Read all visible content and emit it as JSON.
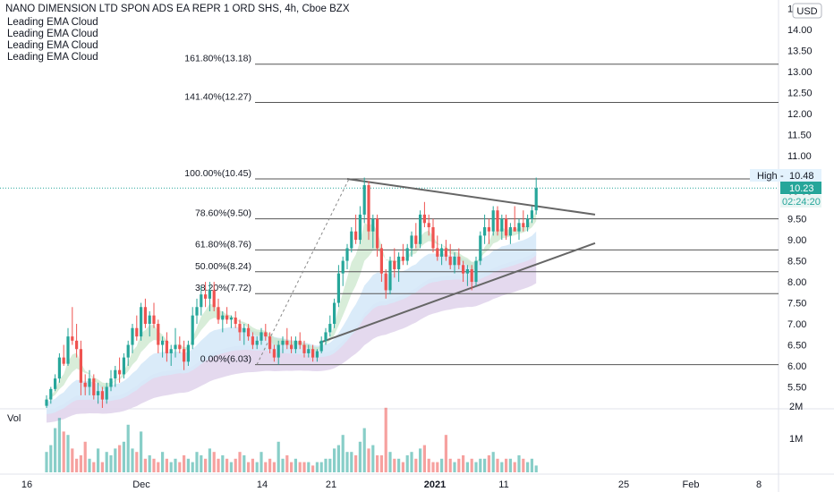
{
  "header": {
    "title": "NANO DIMENSION LTD SPON ADS EA REPR 1 ORD SHS, 4h, Cboe BZX",
    "indicators": [
      "Leading EMA Cloud",
      "Leading EMA Cloud",
      "Leading EMA Cloud",
      "Leading EMA Cloud"
    ],
    "currency": "USD"
  },
  "volume_label": "Vol",
  "countdown": "02:24:20",
  "colors": {
    "up": "#26a69a",
    "down": "#ef5350",
    "fib_line": "#555555",
    "trend_line": "#666666",
    "price_line": "#26a69a",
    "cloud_green": "#c8e6c9",
    "cloud_red": "#ffcdd2",
    "cloud_blue": "#d6e9f8",
    "cloud_purple": "#e1d5ec"
  },
  "chart_data": {
    "type": "candlestick",
    "y_ticks": [
      "5.50",
      "6.00",
      "6.50",
      "7.00",
      "7.50",
      "8.00",
      "8.50",
      "9.00",
      "9.50",
      "10.00",
      "10.50",
      "11.00",
      "11.50",
      "12.00",
      "12.50",
      "13.00",
      "13.50",
      "14.00",
      "14.50"
    ],
    "ylim": [
      5.0,
      14.6
    ],
    "volume_ticks": [
      "2M",
      "1M"
    ],
    "volume_max": 2000000,
    "x_ticks": [
      "16",
      "Dec",
      "14",
      "21",
      "2021",
      "11",
      "25",
      "Feb",
      "8"
    ],
    "fib_levels": [
      {
        "label": "161.80%(13.18)",
        "value": 13.18
      },
      {
        "label": "141.40%(12.27)",
        "value": 12.27
      },
      {
        "label": "100.00%(10.45)",
        "value": 10.45
      },
      {
        "label": "78.60%(9.50)",
        "value": 9.5
      },
      {
        "label": "61.80%(8.76)",
        "value": 8.76
      },
      {
        "label": "50.00%(8.24)",
        "value": 8.24
      },
      {
        "label": "38.20%(7.72)",
        "value": 7.72
      },
      {
        "label": "0.00%(6.03)",
        "value": 6.03
      }
    ],
    "last_price": {
      "label": "10.23",
      "value": 10.23
    },
    "high_marker": {
      "label": "High",
      "value_label": "10.48",
      "value": 10.48
    },
    "candles": [
      {
        "o": 5.05,
        "h": 5.3,
        "l": 5.0,
        "c": 5.2
      },
      {
        "o": 5.2,
        "h": 5.5,
        "l": 5.1,
        "c": 5.45
      },
      {
        "o": 5.45,
        "h": 5.8,
        "l": 5.4,
        "c": 5.7
      },
      {
        "o": 5.7,
        "h": 6.3,
        "l": 5.6,
        "c": 6.2
      },
      {
        "o": 6.2,
        "h": 6.5,
        "l": 6.0,
        "c": 6.05
      },
      {
        "o": 6.05,
        "h": 6.9,
        "l": 6.0,
        "c": 6.7
      },
      {
        "o": 6.7,
        "h": 7.4,
        "l": 6.5,
        "c": 6.6
      },
      {
        "o": 6.6,
        "h": 7.0,
        "l": 6.2,
        "c": 6.4
      },
      {
        "o": 6.4,
        "h": 6.6,
        "l": 5.3,
        "c": 5.6
      },
      {
        "o": 5.6,
        "h": 5.8,
        "l": 5.3,
        "c": 5.5
      },
      {
        "o": 5.5,
        "h": 5.9,
        "l": 5.3,
        "c": 5.7
      },
      {
        "o": 5.7,
        "h": 5.8,
        "l": 5.2,
        "c": 5.3
      },
      {
        "o": 5.3,
        "h": 5.6,
        "l": 5.1,
        "c": 5.4
      },
      {
        "o": 5.4,
        "h": 5.5,
        "l": 5.0,
        "c": 5.2
      },
      {
        "o": 5.2,
        "h": 5.6,
        "l": 5.1,
        "c": 5.5
      },
      {
        "o": 5.5,
        "h": 5.9,
        "l": 5.4,
        "c": 5.7
      },
      {
        "o": 5.7,
        "h": 6.0,
        "l": 5.5,
        "c": 5.9
      },
      {
        "o": 5.9,
        "h": 6.2,
        "l": 5.6,
        "c": 5.8
      },
      {
        "o": 5.8,
        "h": 6.3,
        "l": 5.7,
        "c": 6.2
      },
      {
        "o": 6.2,
        "h": 6.6,
        "l": 6.0,
        "c": 6.5
      },
      {
        "o": 6.5,
        "h": 7.0,
        "l": 6.3,
        "c": 6.9
      },
      {
        "o": 6.9,
        "h": 7.2,
        "l": 6.6,
        "c": 6.7
      },
      {
        "o": 6.7,
        "h": 7.5,
        "l": 6.6,
        "c": 7.4
      },
      {
        "o": 7.4,
        "h": 7.6,
        "l": 6.9,
        "c": 7.0
      },
      {
        "o": 7.0,
        "h": 7.3,
        "l": 6.7,
        "c": 7.2
      },
      {
        "o": 7.2,
        "h": 7.5,
        "l": 6.9,
        "c": 7.0
      },
      {
        "o": 7.0,
        "h": 7.1,
        "l": 6.3,
        "c": 6.5
      },
      {
        "o": 6.5,
        "h": 6.7,
        "l": 6.2,
        "c": 6.6
      },
      {
        "o": 6.6,
        "h": 6.8,
        "l": 6.1,
        "c": 6.3
      },
      {
        "o": 6.3,
        "h": 6.5,
        "l": 6.0,
        "c": 6.4
      },
      {
        "o": 6.4,
        "h": 6.9,
        "l": 6.2,
        "c": 6.5
      },
      {
        "o": 6.5,
        "h": 6.7,
        "l": 6.3,
        "c": 6.4
      },
      {
        "o": 6.4,
        "h": 6.6,
        "l": 5.9,
        "c": 6.1
      },
      {
        "o": 6.1,
        "h": 6.6,
        "l": 6.0,
        "c": 6.5
      },
      {
        "o": 6.5,
        "h": 7.4,
        "l": 6.4,
        "c": 7.2
      },
      {
        "o": 7.2,
        "h": 7.6,
        "l": 7.0,
        "c": 7.4
      },
      {
        "o": 7.4,
        "h": 7.9,
        "l": 7.2,
        "c": 7.7
      },
      {
        "o": 7.7,
        "h": 8.0,
        "l": 7.4,
        "c": 7.6
      },
      {
        "o": 7.6,
        "h": 8.0,
        "l": 7.3,
        "c": 7.8
      },
      {
        "o": 7.8,
        "h": 8.0,
        "l": 7.3,
        "c": 7.4
      },
      {
        "o": 7.4,
        "h": 7.6,
        "l": 7.0,
        "c": 7.1
      },
      {
        "o": 7.1,
        "h": 7.3,
        "l": 6.8,
        "c": 7.2
      },
      {
        "o": 7.2,
        "h": 7.4,
        "l": 7.0,
        "c": 7.1
      },
      {
        "o": 7.1,
        "h": 7.2,
        "l": 6.9,
        "c": 7.15
      },
      {
        "o": 7.15,
        "h": 7.3,
        "l": 6.9,
        "c": 7.0
      },
      {
        "o": 7.0,
        "h": 7.1,
        "l": 6.6,
        "c": 6.8
      },
      {
        "o": 6.8,
        "h": 7.0,
        "l": 6.5,
        "c": 6.9
      },
      {
        "o": 6.9,
        "h": 7.0,
        "l": 6.6,
        "c": 6.7
      },
      {
        "o": 6.7,
        "h": 6.8,
        "l": 6.4,
        "c": 6.5
      },
      {
        "o": 6.5,
        "h": 6.7,
        "l": 6.4,
        "c": 6.6
      },
      {
        "o": 6.6,
        "h": 6.9,
        "l": 6.5,
        "c": 6.8
      },
      {
        "o": 6.8,
        "h": 7.0,
        "l": 6.6,
        "c": 6.7
      },
      {
        "o": 6.7,
        "h": 6.8,
        "l": 6.3,
        "c": 6.4
      },
      {
        "o": 6.4,
        "h": 6.5,
        "l": 6.1,
        "c": 6.2
      },
      {
        "o": 6.2,
        "h": 6.6,
        "l": 6.03,
        "c": 6.5
      },
      {
        "o": 6.5,
        "h": 6.7,
        "l": 6.3,
        "c": 6.6
      },
      {
        "o": 6.6,
        "h": 6.9,
        "l": 6.4,
        "c": 6.5
      },
      {
        "o": 6.5,
        "h": 6.7,
        "l": 6.3,
        "c": 6.4
      },
      {
        "o": 6.4,
        "h": 6.7,
        "l": 6.3,
        "c": 6.6
      },
      {
        "o": 6.6,
        "h": 6.8,
        "l": 6.4,
        "c": 6.5
      },
      {
        "o": 6.5,
        "h": 6.6,
        "l": 6.2,
        "c": 6.3
      },
      {
        "o": 6.3,
        "h": 6.5,
        "l": 6.2,
        "c": 6.4
      },
      {
        "o": 6.4,
        "h": 6.5,
        "l": 6.1,
        "c": 6.2
      },
      {
        "o": 6.2,
        "h": 6.4,
        "l": 6.1,
        "c": 6.35
      },
      {
        "o": 6.35,
        "h": 6.7,
        "l": 6.3,
        "c": 6.6
      },
      {
        "o": 6.6,
        "h": 6.9,
        "l": 6.5,
        "c": 6.8
      },
      {
        "o": 6.8,
        "h": 7.2,
        "l": 6.7,
        "c": 7.0
      },
      {
        "o": 7.0,
        "h": 7.6,
        "l": 6.9,
        "c": 7.5
      },
      {
        "o": 7.5,
        "h": 8.4,
        "l": 7.4,
        "c": 8.2
      },
      {
        "o": 8.2,
        "h": 8.6,
        "l": 7.9,
        "c": 8.5
      },
      {
        "o": 8.5,
        "h": 8.9,
        "l": 8.3,
        "c": 8.8
      },
      {
        "o": 8.8,
        "h": 9.3,
        "l": 8.7,
        "c": 9.2
      },
      {
        "o": 9.2,
        "h": 9.6,
        "l": 8.9,
        "c": 9.0
      },
      {
        "o": 9.0,
        "h": 9.8,
        "l": 8.9,
        "c": 9.6
      },
      {
        "o": 9.6,
        "h": 10.48,
        "l": 9.4,
        "c": 10.3
      },
      {
        "o": 10.3,
        "h": 10.4,
        "l": 9.0,
        "c": 9.2
      },
      {
        "o": 9.2,
        "h": 9.6,
        "l": 8.8,
        "c": 9.5
      },
      {
        "o": 9.5,
        "h": 9.6,
        "l": 8.6,
        "c": 8.8
      },
      {
        "o": 8.8,
        "h": 8.9,
        "l": 8.0,
        "c": 8.2
      },
      {
        "o": 8.2,
        "h": 8.3,
        "l": 7.6,
        "c": 7.8
      },
      {
        "o": 7.8,
        "h": 8.6,
        "l": 7.7,
        "c": 8.5
      },
      {
        "o": 8.5,
        "h": 8.8,
        "l": 8.1,
        "c": 8.3
      },
      {
        "o": 8.3,
        "h": 8.7,
        "l": 8.0,
        "c": 8.6
      },
      {
        "o": 8.6,
        "h": 8.9,
        "l": 8.4,
        "c": 8.5
      },
      {
        "o": 8.5,
        "h": 8.9,
        "l": 8.4,
        "c": 8.8
      },
      {
        "o": 8.8,
        "h": 9.2,
        "l": 8.6,
        "c": 9.1
      },
      {
        "o": 9.1,
        "h": 9.4,
        "l": 8.8,
        "c": 8.9
      },
      {
        "o": 8.9,
        "h": 9.7,
        "l": 8.8,
        "c": 9.6
      },
      {
        "o": 9.6,
        "h": 9.9,
        "l": 9.3,
        "c": 9.4
      },
      {
        "o": 9.4,
        "h": 9.6,
        "l": 9.1,
        "c": 9.3
      },
      {
        "o": 9.3,
        "h": 9.5,
        "l": 8.7,
        "c": 8.8
      },
      {
        "o": 8.8,
        "h": 9.1,
        "l": 8.5,
        "c": 8.6
      },
      {
        "o": 8.6,
        "h": 8.9,
        "l": 8.4,
        "c": 8.8
      },
      {
        "o": 8.8,
        "h": 9.0,
        "l": 8.5,
        "c": 8.6
      },
      {
        "o": 8.6,
        "h": 8.9,
        "l": 8.3,
        "c": 8.4
      },
      {
        "o": 8.4,
        "h": 8.7,
        "l": 8.2,
        "c": 8.6
      },
      {
        "o": 8.6,
        "h": 8.8,
        "l": 8.3,
        "c": 8.4
      },
      {
        "o": 8.4,
        "h": 8.5,
        "l": 8.0,
        "c": 8.2
      },
      {
        "o": 8.2,
        "h": 8.4,
        "l": 7.9,
        "c": 8.3
      },
      {
        "o": 8.3,
        "h": 8.4,
        "l": 7.8,
        "c": 8.0
      },
      {
        "o": 8.0,
        "h": 8.6,
        "l": 7.9,
        "c": 8.5
      },
      {
        "o": 8.5,
        "h": 9.2,
        "l": 8.4,
        "c": 9.1
      },
      {
        "o": 9.1,
        "h": 9.6,
        "l": 8.9,
        "c": 9.3
      },
      {
        "o": 9.3,
        "h": 9.5,
        "l": 8.9,
        "c": 9.2
      },
      {
        "o": 9.2,
        "h": 9.8,
        "l": 9.1,
        "c": 9.7
      },
      {
        "o": 9.7,
        "h": 9.8,
        "l": 9.1,
        "c": 9.2
      },
      {
        "o": 9.2,
        "h": 9.6,
        "l": 9.0,
        "c": 9.5
      },
      {
        "o": 9.5,
        "h": 9.6,
        "l": 9.0,
        "c": 9.1
      },
      {
        "o": 9.1,
        "h": 9.4,
        "l": 8.9,
        "c": 9.3
      },
      {
        "o": 9.3,
        "h": 9.8,
        "l": 9.2,
        "c": 9.2
      },
      {
        "o": 9.2,
        "h": 9.5,
        "l": 9.0,
        "c": 9.4
      },
      {
        "o": 9.4,
        "h": 9.7,
        "l": 9.2,
        "c": 9.3
      },
      {
        "o": 9.3,
        "h": 9.6,
        "l": 9.2,
        "c": 9.5
      },
      {
        "o": 9.5,
        "h": 9.8,
        "l": 9.4,
        "c": 9.7
      },
      {
        "o": 9.7,
        "h": 10.48,
        "l": 9.6,
        "c": 10.23
      }
    ],
    "volumes": [
      0.6,
      0.8,
      1.3,
      1.6,
      1.2,
      1.1,
      0.7,
      0.4,
      0.5,
      0.9,
      0.4,
      0.3,
      0.7,
      0.3,
      0.6,
      0.5,
      0.7,
      0.8,
      0.9,
      1.4,
      0.7,
      0.6,
      1.2,
      0.4,
      0.5,
      0.4,
      0.3,
      0.6,
      0.4,
      0.3,
      0.4,
      0.3,
      0.5,
      0.4,
      0.3,
      0.6,
      0.5,
      0.4,
      0.7,
      0.6,
      0.4,
      0.5,
      0.4,
      0.3,
      0.4,
      0.6,
      0.5,
      0.3,
      0.4,
      0.3,
      0.6,
      0.3,
      0.4,
      0.3,
      0.9,
      0.4,
      0.5,
      0.3,
      0.4,
      0.3,
      0.3,
      0.3,
      0.2,
      0.3,
      0.3,
      0.4,
      0.4,
      0.7,
      0.8,
      1.1,
      0.6,
      0.6,
      0.5,
      0.9,
      1.3,
      0.7,
      0.8,
      0.5,
      0.5,
      1.9,
      0.6,
      0.4,
      0.4,
      0.3,
      0.5,
      0.6,
      0.4,
      0.7,
      0.8,
      0.4,
      0.3,
      0.3,
      0.4,
      1.1,
      0.4,
      0.3,
      0.4,
      0.5,
      0.3,
      0.4,
      0.3,
      0.4,
      0.4,
      0.5,
      0.6,
      0.4,
      0.3,
      0.4,
      0.4,
      0.3,
      0.5,
      0.4,
      0.3,
      0.4,
      0.2
    ]
  }
}
